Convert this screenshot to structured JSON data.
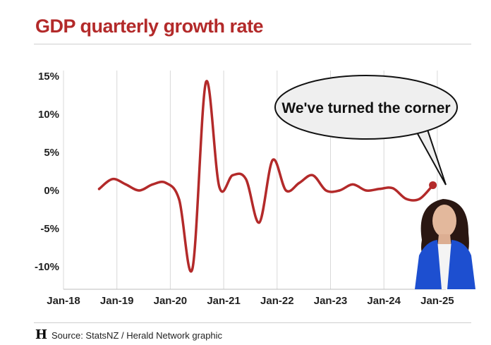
{
  "header": {
    "title": "GDP quarterly growth rate"
  },
  "footer": {
    "source": "Source: StatsNZ / Herald Network graphic",
    "logo": "H"
  },
  "callout": {
    "text": "We've turned the corner"
  },
  "colors": {
    "title": "#b32a2a",
    "line": "#b32a2a",
    "grid": "#d8d8d8",
    "text": "#222222",
    "portrait_jacket": "#1d4fd0"
  },
  "chart_data": {
    "type": "line",
    "title": "GDP quarterly growth rate",
    "xlabel": "",
    "ylabel": "",
    "ylim": [
      -12,
      15.5
    ],
    "y_ticks": [
      {
        "value": 15,
        "label": "15%"
      },
      {
        "value": 10,
        "label": "10%"
      },
      {
        "value": 5,
        "label": "5%"
      },
      {
        "value": 0,
        "label": "0%"
      },
      {
        "value": -5,
        "label": "-5%"
      },
      {
        "value": -10,
        "label": "-10%"
      }
    ],
    "x_ticks": [
      {
        "value": "2018-01",
        "label": "Jan-18"
      },
      {
        "value": "2019-01",
        "label": "Jan-19"
      },
      {
        "value": "2020-01",
        "label": "Jan-20"
      },
      {
        "value": "2021-01",
        "label": "Jan-21"
      },
      {
        "value": "2022-01",
        "label": "Jan-22"
      },
      {
        "value": "2023-01",
        "label": "Jan-23"
      },
      {
        "value": "2024-01",
        "label": "Jan-24"
      },
      {
        "value": "2025-01",
        "label": "Jan-25"
      }
    ],
    "grid": "vertical",
    "series": [
      {
        "x": [
          "2018-09",
          "2018-12",
          "2019-03",
          "2019-06",
          "2019-09",
          "2019-12",
          "2020-03",
          "2020-06",
          "2020-09",
          "2020-12",
          "2021-03",
          "2021-06",
          "2021-09",
          "2021-12",
          "2022-03",
          "2022-06",
          "2022-09",
          "2022-12",
          "2023-03",
          "2023-06",
          "2023-09",
          "2023-12",
          "2024-03",
          "2024-06",
          "2024-09",
          "2024-12"
        ],
        "values": [
          0.2,
          1.5,
          0.8,
          0.0,
          0.8,
          1.0,
          -1.2,
          -10.2,
          14.2,
          0.5,
          2.0,
          1.5,
          -4.2,
          4.0,
          0.0,
          1.0,
          2.0,
          0.0,
          0.0,
          0.8,
          0.0,
          0.2,
          0.3,
          -1.1,
          -1.1,
          0.7
        ]
      }
    ]
  }
}
